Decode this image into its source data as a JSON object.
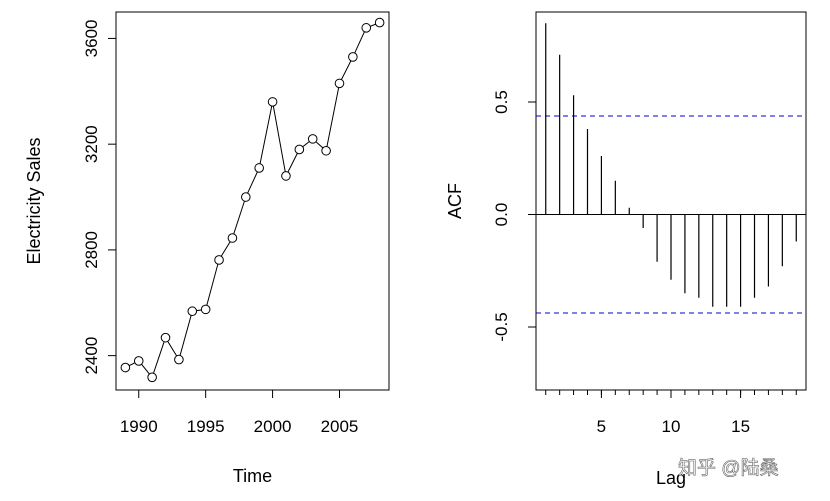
{
  "chart_data": [
    {
      "type": "line",
      "xlabel": "Time",
      "ylabel": "Electricity Sales",
      "xlim": [
        1988.3,
        2008.7
      ],
      "ylim": [
        2270,
        3700
      ],
      "x_ticks": [
        1990,
        1995,
        2000,
        2005
      ],
      "y_ticks": [
        2400,
        2800,
        3200,
        3600
      ],
      "x_tick_labels": [
        "1990",
        "1995",
        "2000",
        "2005"
      ],
      "y_tick_labels": [
        "2400",
        "2800",
        "3200",
        "3600"
      ],
      "markers": "open-circle",
      "series": [
        {
          "x": [
            1989,
            1990,
            1991,
            1992,
            1993,
            1994,
            1995,
            1996,
            1997,
            1998,
            1999,
            2000,
            2001,
            2002,
            2003,
            2004,
            2005,
            2006,
            2007,
            2008
          ],
          "values": [
            2355,
            2380,
            2318,
            2468,
            2385,
            2568,
            2575,
            2762,
            2845,
            3000,
            3110,
            3360,
            3080,
            3180,
            3220,
            3175,
            3430,
            3530,
            3640,
            3660
          ]
        }
      ]
    },
    {
      "type": "bar",
      "subtype": "acf",
      "xlabel": "Lag",
      "ylabel": "ACF",
      "xlim": [
        0.3,
        19.7
      ],
      "ylim": [
        -0.78,
        0.9
      ],
      "x_ticks": [
        5,
        10,
        15
      ],
      "y_ticks": [
        -0.5,
        0.0,
        0.5
      ],
      "x_tick_labels": [
        "5",
        "10",
        "15"
      ],
      "y_tick_labels": [
        "-0.5",
        "0.0",
        "0.5"
      ],
      "lags": [
        1,
        2,
        3,
        4,
        5,
        6,
        7,
        8,
        9,
        10,
        11,
        12,
        13,
        14,
        15,
        16,
        17,
        18,
        19
      ],
      "values": [
        0.85,
        0.71,
        0.53,
        0.38,
        0.26,
        0.15,
        0.03,
        -0.06,
        -0.21,
        -0.29,
        -0.35,
        -0.37,
        -0.41,
        -0.41,
        -0.41,
        -0.37,
        -0.32,
        -0.23,
        -0.12
      ],
      "confidence_bound": 0.438,
      "confidence_color": "#0000cc",
      "grid": false
    }
  ],
  "watermark": "知乎 @陆桑"
}
